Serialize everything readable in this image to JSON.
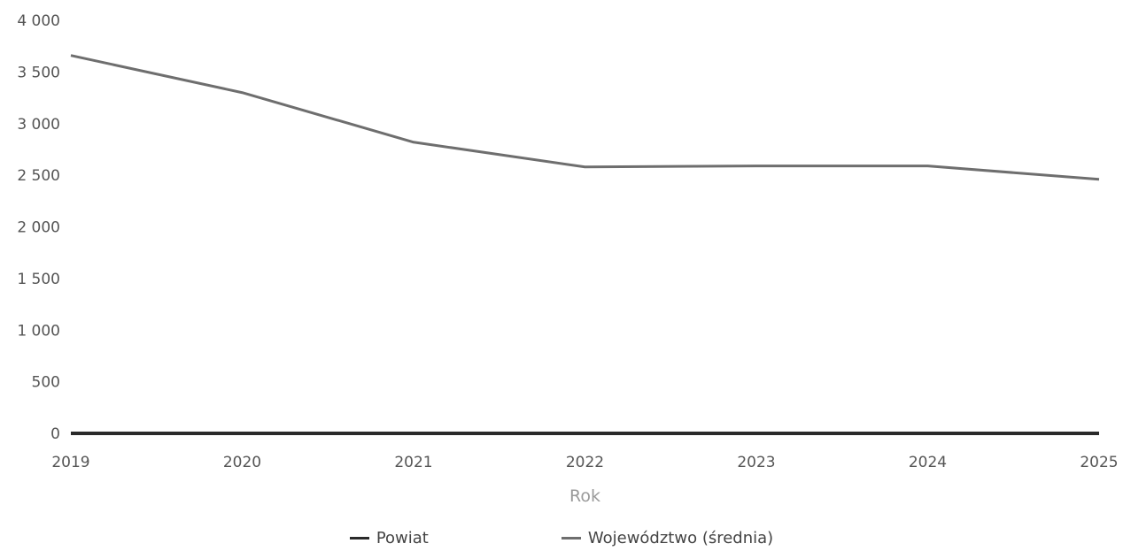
{
  "chart_data": {
    "type": "line",
    "x": [
      "2019",
      "2020",
      "2021",
      "2022",
      "2023",
      "2024",
      "2025"
    ],
    "xlabel": "Rok",
    "ylim": [
      0,
      4000
    ],
    "yticks": [
      {
        "value": 0,
        "label": "0"
      },
      {
        "value": 500,
        "label": "500"
      },
      {
        "value": 1000,
        "label": "1 000"
      },
      {
        "value": 1500,
        "label": "1 500"
      },
      {
        "value": 2000,
        "label": "2 000"
      },
      {
        "value": 2500,
        "label": "2 500"
      },
      {
        "value": 3000,
        "label": "3 000"
      },
      {
        "value": 3500,
        "label": "3 500"
      },
      {
        "value": 4000,
        "label": "4 000"
      }
    ],
    "grid": false,
    "legend_position": "bottom",
    "series": [
      {
        "name": "Powiat",
        "color": "#2a2a2a",
        "values": [
          0,
          0,
          0,
          0,
          0,
          0,
          0
        ]
      },
      {
        "name": "Województwo (średnia)",
        "color": "#6e6e6e",
        "values": [
          3660,
          3300,
          2820,
          2580,
          2590,
          2590,
          2460
        ]
      }
    ]
  }
}
